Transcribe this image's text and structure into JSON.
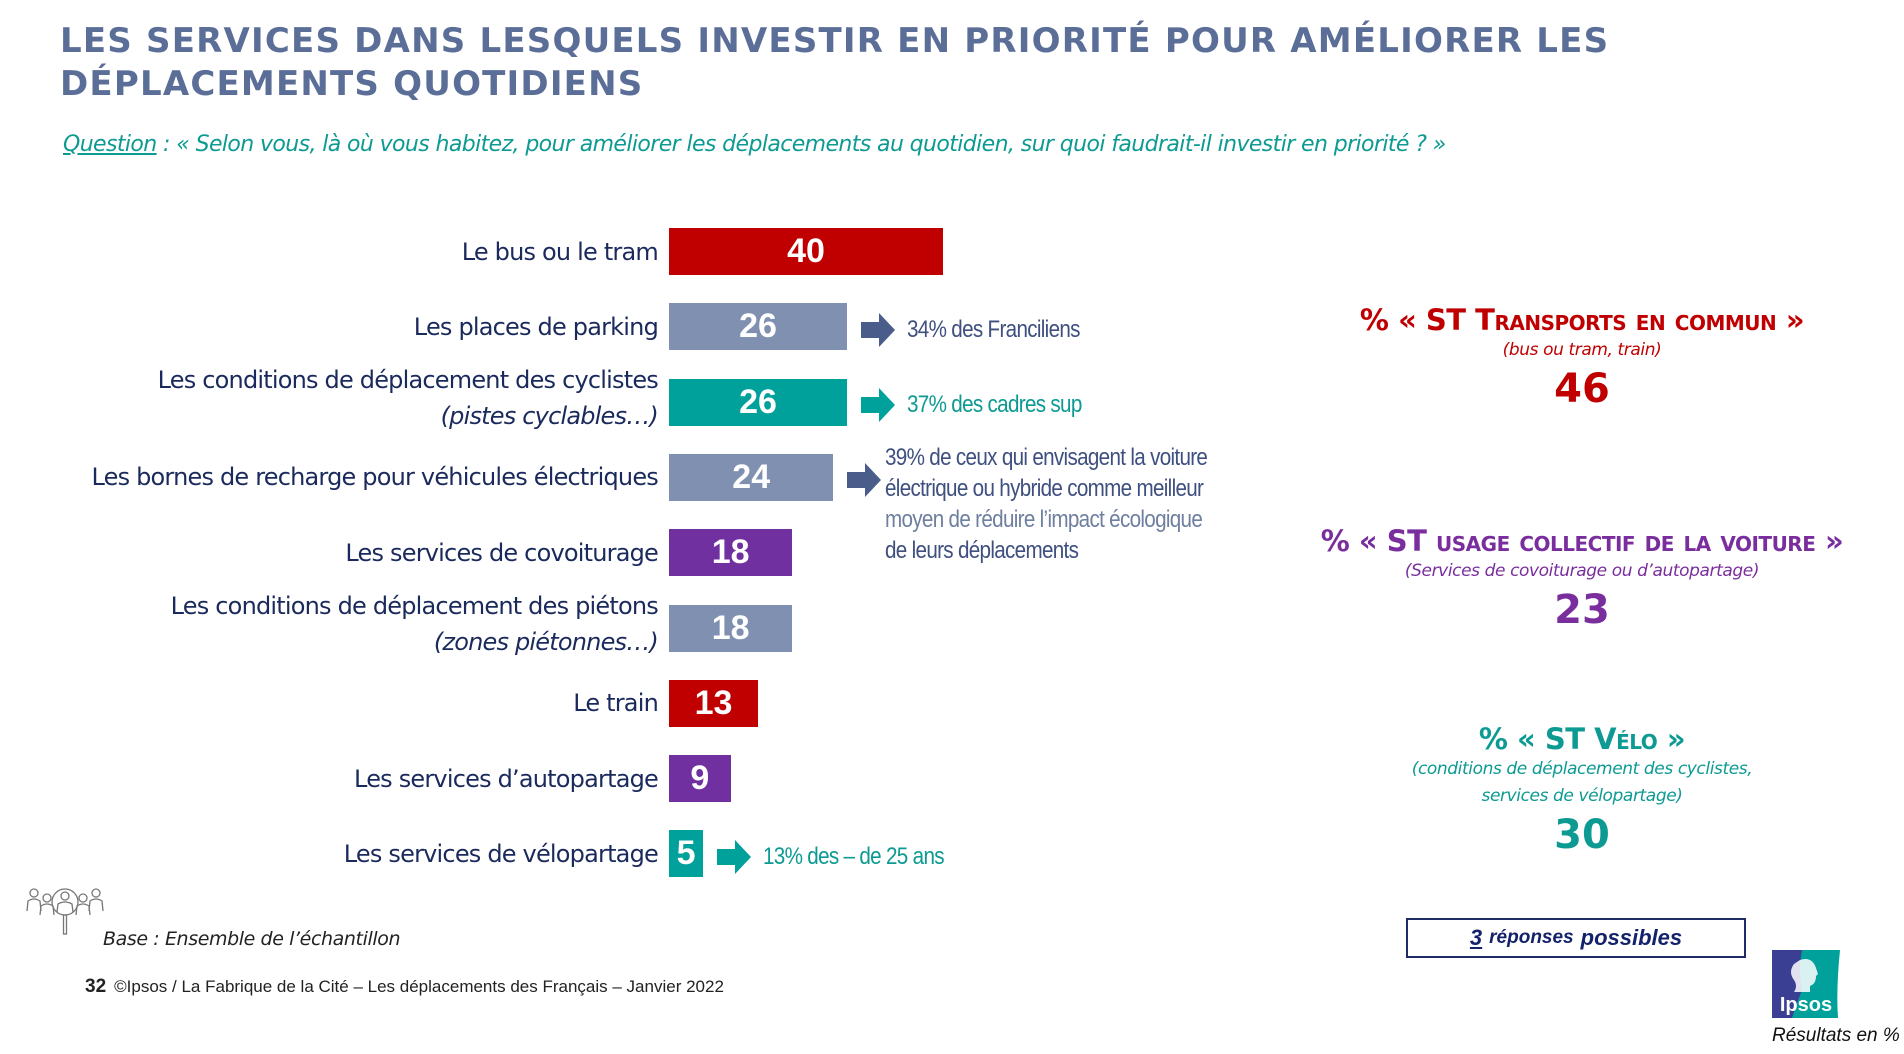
{
  "title": "LES SERVICES DANS LESQUELS INVESTIR EN PRIORITÉ POUR AMÉLIORER LES DÉPLACEMENTS QUOTIDIENS",
  "question": {
    "label": "Question",
    "text": " : « Selon vous, là où vous habitez, pour améliorer les déplacements au quotidien, sur quoi faudrait-il investir en priorité ? »"
  },
  "colors": {
    "title": "#5b6e98",
    "question": "#0d9a93",
    "label": "#1b2a5c",
    "transport": "#c00000",
    "other": "#8090b0",
    "velo": "#00a19b",
    "voiture": "#7030a0",
    "note_dark": "#3f5080",
    "note_light": "#6f7f9f",
    "arrow_dark": "#4a5c8a"
  },
  "chart_data": {
    "type": "bar",
    "orientation": "horizontal",
    "title": "Les services dans lesquels investir en priorité pour améliorer les déplacements quotidiens",
    "unit": "%",
    "categories": [
      "Le bus ou le tram",
      "Les places de parking",
      "Les conditions de déplacement des cyclistes (pistes cyclables…)",
      "Les bornes de recharge pour véhicules électriques",
      "Les services de covoiturage",
      "Les conditions de déplacement des piétons (zones piétonnes…)",
      "Le train",
      "Les services d’autopartage",
      "Les services de vélopartage"
    ],
    "values": [
      40,
      26,
      26,
      24,
      18,
      18,
      13,
      9,
      5
    ],
    "xlim": [
      0,
      100
    ],
    "grid": false,
    "legend": "none"
  },
  "bars": [
    {
      "label": "Le bus ou le tram",
      "sub": "",
      "value": 40,
      "color": "#c00000"
    },
    {
      "label": "Les places de parking",
      "sub": "",
      "value": 26,
      "color": "#8090b0",
      "note": {
        "lines": [
          "34% des Franciliens"
        ],
        "color": "#3f5080",
        "arrow": "#4a5c8a"
      }
    },
    {
      "label": "Les conditions de déplacement des cyclistes",
      "sub": "(pistes cyclables…)",
      "value": 26,
      "color": "#00a19b",
      "note": {
        "lines": [
          "37% des cadres sup"
        ],
        "color": "#0d9a93",
        "arrow": "#00a19b"
      }
    },
    {
      "label": "Les bornes de recharge pour véhicules électriques",
      "sub": "",
      "value": 24,
      "color": "#8090b0",
      "note": {
        "lines": [
          "39% de ceux qui envisagent la voiture",
          "électrique ou hybride comme meilleur",
          "moyen de réduire l’impact écologique",
          "de leurs déplacements"
        ],
        "color": "#3f5080",
        "arrow": "#4a5c8a"
      }
    },
    {
      "label": "Les services de covoiturage",
      "sub": "",
      "value": 18,
      "color": "#7030a0"
    },
    {
      "label": "Les conditions de déplacement des piétons",
      "sub": "(zones piétonnes…)",
      "value": 18,
      "color": "#8090b0"
    },
    {
      "label": "Le train",
      "sub": "",
      "value": 13,
      "color": "#c00000"
    },
    {
      "label": "Les services d’autopartage",
      "sub": "",
      "value": 9,
      "color": "#7030a0"
    },
    {
      "label": "Les services de vélopartage",
      "sub": "",
      "value": 5,
      "color": "#00a19b",
      "note": {
        "lines": [
          "13% des – de 25 ans"
        ],
        "color": "#0d9a93",
        "arrow": "#00a19b"
      }
    }
  ],
  "subtotals": [
    {
      "head": "% «  ST Transports en commun »",
      "sub": [
        "(bus ou tram, train)"
      ],
      "value": "46",
      "color": "#c00000"
    },
    {
      "head": "% «  ST usage collectif de la voiture »",
      "sub": [
        "(Services de covoiturage ou d’autopartage)"
      ],
      "value": "23",
      "color": "#7a2e9e"
    },
    {
      "head": "% «  ST Vélo »",
      "sub": [
        "(conditions de déplacement des cyclistes,",
        "services de vélopartage)"
      ],
      "value": "30",
      "color": "#0d9a93"
    }
  ],
  "base": "Base : Ensemble de l’échantillon",
  "footer": {
    "page": "32",
    "text": "©Ipsos / La Fabrique de la Cité – Les déplacements des Français – Janvier 2022"
  },
  "responses": {
    "num": "3",
    "mid": "réponses",
    "end": "possibles"
  },
  "logo_text": "Ipsos",
  "results_note": "Résultats en %"
}
